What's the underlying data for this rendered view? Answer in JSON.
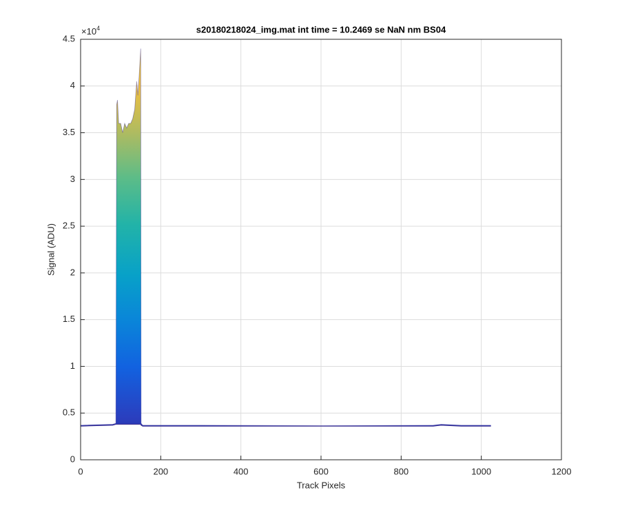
{
  "chart_data": {
    "type": "area",
    "title": "s20180218024_img.mat int time = 10.2469 se  NaN nm BS04",
    "x_label": "Track Pixels",
    "y_label": "Signal (ADU)",
    "y_exponent": {
      "base": "×10",
      "power": "4"
    },
    "x": [
      0,
      80,
      88,
      90,
      92,
      95,
      100,
      105,
      110,
      115,
      120,
      125,
      130,
      135,
      140,
      143,
      146,
      150,
      151,
      155,
      300,
      600,
      880,
      900,
      950,
      1024
    ],
    "values": [
      0.37,
      0.38,
      0.39,
      3.8,
      3.85,
      3.6,
      3.6,
      3.5,
      3.6,
      3.55,
      3.6,
      3.6,
      3.65,
      3.75,
      4.05,
      3.9,
      4.1,
      4.4,
      0.39,
      0.37,
      0.37,
      0.365,
      0.37,
      0.38,
      0.37,
      0.37
    ],
    "values_min": [
      0.36,
      0.37,
      0.38,
      0.38,
      0.38,
      0.38,
      0.38,
      0.38,
      0.38,
      0.38,
      0.38,
      0.38,
      0.38,
      0.38,
      0.38,
      0.38,
      0.38,
      0.38,
      0.37,
      0.36,
      0.36,
      0.36,
      0.36,
      0.37,
      0.36,
      0.36
    ],
    "color": "#3a2e8f",
    "xlim": [
      0,
      1200
    ],
    "xticks": [
      0,
      200,
      400,
      600,
      800,
      1000,
      1200
    ],
    "ylim": [
      0,
      4.5
    ],
    "yticks": [
      0,
      0.5,
      1,
      1.5,
      2,
      2.5,
      3,
      3.5,
      4,
      4.5
    ],
    "grid": true
  }
}
